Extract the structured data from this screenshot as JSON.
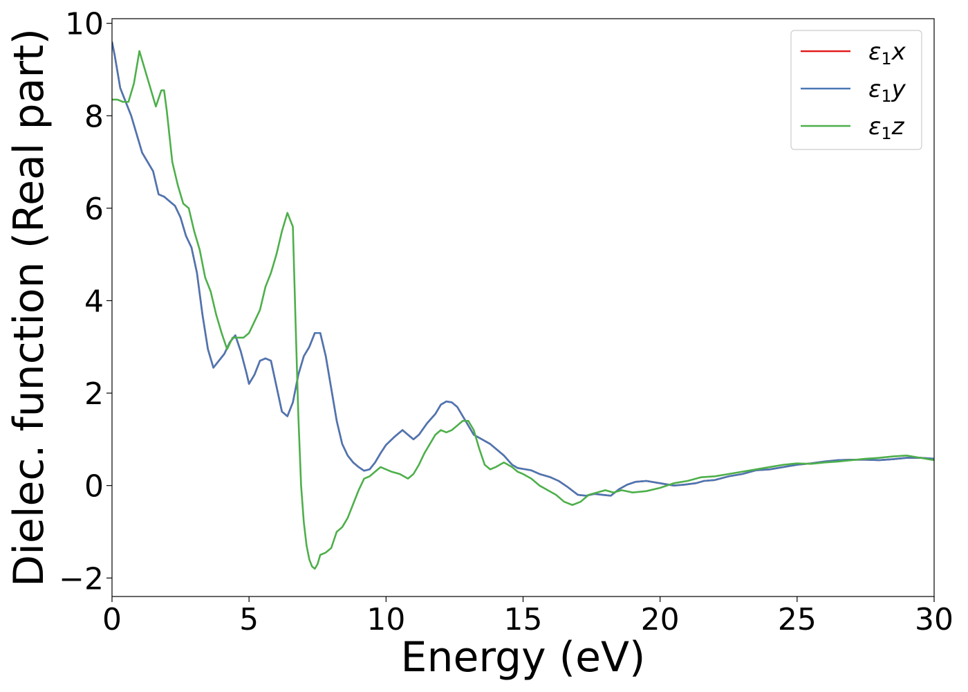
{
  "chart_data": {
    "type": "line",
    "title": "",
    "xlabel": "Energy (eV)",
    "ylabel": "Dielec. function (Real part)",
    "xlim": [
      0,
      30
    ],
    "ylim": [
      -2.4,
      10.1
    ],
    "x_ticks": [
      0,
      5,
      10,
      15,
      20,
      25,
      30
    ],
    "y_ticks": [
      -2,
      0,
      2,
      4,
      6,
      8,
      10
    ],
    "y_tick_labels": [
      "−2",
      "0",
      "2",
      "4",
      "6",
      "8",
      "10"
    ],
    "grid": false,
    "legend_position": "top-right",
    "series": [
      {
        "name": "ε₁x",
        "legend_base": "ε",
        "legend_sub": "1",
        "legend_var": "x",
        "color": "#e41a1c",
        "x": [
          0,
          0.1,
          0.3,
          0.5,
          0.7,
          0.9,
          1.1,
          1.3,
          1.5,
          1.7,
          1.9,
          2.1,
          2.3,
          2.5,
          2.7,
          2.9,
          3.1,
          3.3,
          3.5,
          3.7,
          3.9,
          4.1,
          4.3,
          4.5,
          4.7,
          4.9,
          5.0,
          5.2,
          5.4,
          5.6,
          5.8,
          6.0,
          6.2,
          6.4,
          6.6,
          6.8,
          7.0,
          7.2,
          7.4,
          7.6,
          7.8,
          8.0,
          8.2,
          8.4,
          8.6,
          8.8,
          9.0,
          9.2,
          9.4,
          9.6,
          9.8,
          10.0,
          10.3,
          10.6,
          10.8,
          11.0,
          11.2,
          11.5,
          11.8,
          12.0,
          12.2,
          12.4,
          12.6,
          12.8,
          13.0,
          13.2,
          13.5,
          13.8,
          14.0,
          14.3,
          14.6,
          14.8,
          15.0,
          15.3,
          15.6,
          16.0,
          16.3,
          16.6,
          17.0,
          17.3,
          17.6,
          17.9,
          18.2,
          18.5,
          18.8,
          19.1,
          19.5,
          20.0,
          20.5,
          20.9,
          21.3,
          21.6,
          22.0,
          22.5,
          23.0,
          23.5,
          24.0,
          24.5,
          25.0,
          25.5,
          26.0,
          26.5,
          27.0,
          27.5,
          28.0,
          28.5,
          29.0,
          29.5,
          30.0
        ],
        "y": [
          9.6,
          9.3,
          8.6,
          8.3,
          8.0,
          7.6,
          7.2,
          7.0,
          6.8,
          6.3,
          6.25,
          6.15,
          6.05,
          5.8,
          5.4,
          5.15,
          4.6,
          3.7,
          2.95,
          2.55,
          2.7,
          2.85,
          3.1,
          3.25,
          2.9,
          2.45,
          2.2,
          2.4,
          2.7,
          2.75,
          2.7,
          2.15,
          1.6,
          1.5,
          1.8,
          2.4,
          2.8,
          3.0,
          3.3,
          3.3,
          2.8,
          2.1,
          1.4,
          0.9,
          0.65,
          0.5,
          0.4,
          0.32,
          0.35,
          0.5,
          0.7,
          0.88,
          1.05,
          1.2,
          1.1,
          1.0,
          1.1,
          1.35,
          1.55,
          1.75,
          1.82,
          1.8,
          1.7,
          1.5,
          1.3,
          1.1,
          1.0,
          0.9,
          0.8,
          0.65,
          0.45,
          0.38,
          0.36,
          0.33,
          0.25,
          0.18,
          0.1,
          -0.02,
          -0.2,
          -0.22,
          -0.18,
          -0.2,
          -0.22,
          -0.08,
          0.02,
          0.08,
          0.1,
          0.05,
          0.0,
          0.02,
          0.05,
          0.1,
          0.12,
          0.2,
          0.25,
          0.33,
          0.35,
          0.4,
          0.45,
          0.48,
          0.52,
          0.55,
          0.56,
          0.56,
          0.55,
          0.57,
          0.6,
          0.6,
          0.58
        ]
      },
      {
        "name": "ε₁y",
        "legend_base": "ε",
        "legend_sub": "1",
        "legend_var": "y",
        "color": "#4a77b4",
        "x": [
          0,
          0.1,
          0.3,
          0.5,
          0.7,
          0.9,
          1.1,
          1.3,
          1.5,
          1.7,
          1.9,
          2.1,
          2.3,
          2.5,
          2.7,
          2.9,
          3.1,
          3.3,
          3.5,
          3.7,
          3.9,
          4.1,
          4.3,
          4.5,
          4.7,
          4.9,
          5.0,
          5.2,
          5.4,
          5.6,
          5.8,
          6.0,
          6.2,
          6.4,
          6.6,
          6.8,
          7.0,
          7.2,
          7.4,
          7.6,
          7.8,
          8.0,
          8.2,
          8.4,
          8.6,
          8.8,
          9.0,
          9.2,
          9.4,
          9.6,
          9.8,
          10.0,
          10.3,
          10.6,
          10.8,
          11.0,
          11.2,
          11.5,
          11.8,
          12.0,
          12.2,
          12.4,
          12.6,
          12.8,
          13.0,
          13.2,
          13.5,
          13.8,
          14.0,
          14.3,
          14.6,
          14.8,
          15.0,
          15.3,
          15.6,
          16.0,
          16.3,
          16.6,
          17.0,
          17.3,
          17.6,
          17.9,
          18.2,
          18.5,
          18.8,
          19.1,
          19.5,
          20.0,
          20.5,
          20.9,
          21.3,
          21.6,
          22.0,
          22.5,
          23.0,
          23.5,
          24.0,
          24.5,
          25.0,
          25.5,
          26.0,
          26.5,
          27.0,
          27.5,
          28.0,
          28.5,
          29.0,
          29.5,
          30.0
        ],
        "y": [
          9.6,
          9.3,
          8.6,
          8.3,
          8.0,
          7.6,
          7.2,
          7.0,
          6.8,
          6.3,
          6.25,
          6.15,
          6.05,
          5.8,
          5.4,
          5.15,
          4.6,
          3.7,
          2.95,
          2.55,
          2.7,
          2.85,
          3.1,
          3.25,
          2.9,
          2.45,
          2.2,
          2.4,
          2.7,
          2.75,
          2.7,
          2.15,
          1.6,
          1.5,
          1.8,
          2.4,
          2.8,
          3.0,
          3.3,
          3.3,
          2.8,
          2.1,
          1.4,
          0.9,
          0.65,
          0.5,
          0.4,
          0.32,
          0.35,
          0.5,
          0.7,
          0.88,
          1.05,
          1.2,
          1.1,
          1.0,
          1.1,
          1.35,
          1.55,
          1.75,
          1.82,
          1.8,
          1.7,
          1.5,
          1.3,
          1.1,
          1.0,
          0.9,
          0.8,
          0.65,
          0.45,
          0.38,
          0.36,
          0.33,
          0.25,
          0.18,
          0.1,
          -0.02,
          -0.2,
          -0.22,
          -0.18,
          -0.2,
          -0.22,
          -0.08,
          0.02,
          0.08,
          0.1,
          0.05,
          0.0,
          0.02,
          0.05,
          0.1,
          0.12,
          0.2,
          0.25,
          0.33,
          0.35,
          0.4,
          0.45,
          0.48,
          0.52,
          0.55,
          0.56,
          0.56,
          0.55,
          0.57,
          0.6,
          0.6,
          0.58
        ]
      },
      {
        "name": "ε₁z",
        "legend_base": "ε",
        "legend_sub": "1",
        "legend_var": "z",
        "color": "#4daf4a",
        "x": [
          0,
          0.2,
          0.4,
          0.6,
          0.8,
          1.0,
          1.2,
          1.4,
          1.6,
          1.8,
          1.9,
          2.0,
          2.2,
          2.4,
          2.6,
          2.8,
          3.0,
          3.2,
          3.4,
          3.6,
          3.8,
          4.0,
          4.2,
          4.4,
          4.6,
          4.8,
          5.0,
          5.2,
          5.4,
          5.6,
          5.8,
          6.0,
          6.2,
          6.4,
          6.6,
          6.7,
          6.8,
          6.9,
          7.0,
          7.1,
          7.2,
          7.3,
          7.4,
          7.5,
          7.6,
          7.8,
          8.0,
          8.2,
          8.4,
          8.6,
          8.8,
          9.0,
          9.2,
          9.4,
          9.6,
          9.8,
          10.0,
          10.2,
          10.5,
          10.8,
          11.0,
          11.2,
          11.4,
          11.6,
          11.8,
          12.0,
          12.2,
          12.4,
          12.6,
          12.8,
          13.0,
          13.2,
          13.4,
          13.6,
          13.8,
          14.0,
          14.3,
          14.6,
          14.8,
          15.0,
          15.3,
          15.6,
          15.9,
          16.2,
          16.5,
          16.8,
          17.1,
          17.4,
          17.7,
          18.0,
          18.3,
          18.6,
          19.0,
          19.5,
          20.0,
          20.5,
          21.0,
          21.5,
          22.0,
          22.5,
          23.0,
          23.5,
          24.0,
          24.5,
          25.0,
          25.5,
          26.0,
          26.5,
          27.0,
          27.5,
          28.0,
          28.5,
          29.0,
          29.5,
          30.0
        ],
        "y": [
          8.35,
          8.35,
          8.3,
          8.3,
          8.7,
          9.4,
          9.0,
          8.6,
          8.2,
          8.55,
          8.55,
          8.1,
          7.0,
          6.5,
          6.1,
          6.0,
          5.5,
          5.1,
          4.5,
          4.2,
          3.7,
          3.3,
          2.95,
          3.2,
          3.2,
          3.2,
          3.3,
          3.55,
          3.8,
          4.3,
          4.6,
          5.0,
          5.5,
          5.9,
          5.6,
          3.5,
          1.5,
          0.0,
          -0.8,
          -1.3,
          -1.6,
          -1.75,
          -1.8,
          -1.7,
          -1.5,
          -1.45,
          -1.35,
          -1.0,
          -0.9,
          -0.7,
          -0.4,
          -0.1,
          0.15,
          0.2,
          0.3,
          0.4,
          0.35,
          0.3,
          0.25,
          0.15,
          0.25,
          0.45,
          0.7,
          0.9,
          1.1,
          1.2,
          1.15,
          1.2,
          1.3,
          1.4,
          1.4,
          1.2,
          0.8,
          0.45,
          0.35,
          0.4,
          0.5,
          0.4,
          0.3,
          0.25,
          0.15,
          0.0,
          -0.1,
          -0.2,
          -0.35,
          -0.42,
          -0.35,
          -0.2,
          -0.15,
          -0.1,
          -0.15,
          -0.1,
          -0.15,
          -0.12,
          -0.05,
          0.05,
          0.1,
          0.18,
          0.2,
          0.25,
          0.3,
          0.35,
          0.4,
          0.45,
          0.48,
          0.47,
          0.5,
          0.52,
          0.55,
          0.58,
          0.6,
          0.63,
          0.65,
          0.6,
          0.55
        ]
      }
    ]
  }
}
